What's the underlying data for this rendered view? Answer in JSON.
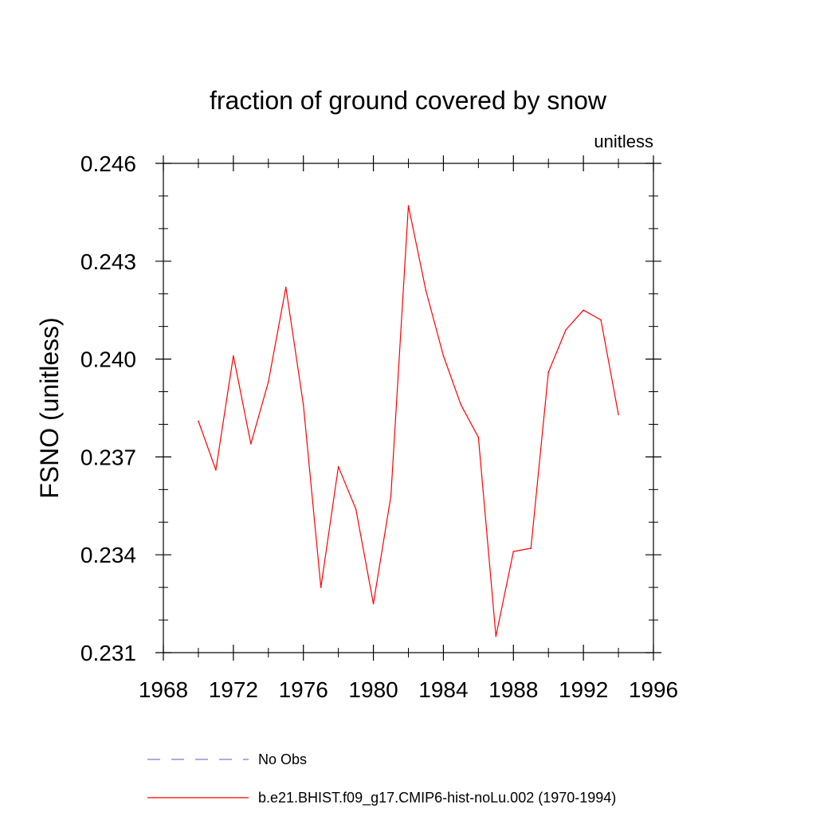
{
  "chart_data": {
    "type": "line",
    "title": "fraction of ground covered by snow",
    "units_label": "unitless",
    "ylabel": "FSNO  (unitless)",
    "xlabel": "",
    "xlim": [
      1968,
      1996
    ],
    "ylim": [
      0.231,
      0.246
    ],
    "x_ticks": [
      1968,
      1972,
      1976,
      1980,
      1984,
      1988,
      1992,
      1996
    ],
    "x_tick_labels": [
      "1968",
      "1972",
      "1976",
      "1980",
      "1984",
      "1988",
      "1992",
      "1996"
    ],
    "y_ticks": [
      0.231,
      0.234,
      0.237,
      0.24,
      0.243,
      0.246
    ],
    "y_tick_labels": [
      "0.231",
      "0.234",
      "0.237",
      "0.240",
      "0.243",
      "0.246"
    ],
    "grid": false,
    "series": [
      {
        "name": "b.e21.BHIST.f09_g17.CMIP6-hist-noLu.002 (1970-1994)",
        "color": "#ff0000",
        "x": [
          1970,
          1971,
          1972,
          1973,
          1974,
          1975,
          1976,
          1977,
          1978,
          1979,
          1980,
          1981,
          1982,
          1983,
          1984,
          1985,
          1986,
          1987,
          1988,
          1989,
          1990,
          1991,
          1992,
          1993,
          1994
        ],
        "values": [
          0.2381,
          0.2366,
          0.2401,
          0.2374,
          0.2393,
          0.2422,
          0.2386,
          0.233,
          0.2367,
          0.2354,
          0.2325,
          0.2358,
          0.2447,
          0.2421,
          0.2401,
          0.2386,
          0.2376,
          0.2315,
          0.2341,
          0.2342,
          0.2396,
          0.2409,
          0.2415,
          0.2412,
          0.2383
        ]
      }
    ],
    "legend": {
      "position": "bottom",
      "entries": [
        {
          "label": "No Obs",
          "color": "#7b7bd6",
          "style": "dashed"
        },
        {
          "label": "b.e21.BHIST.f09_g17.CMIP6-hist-noLu.002 (1970-1994)",
          "color": "#ff0000",
          "style": "solid"
        }
      ]
    }
  }
}
